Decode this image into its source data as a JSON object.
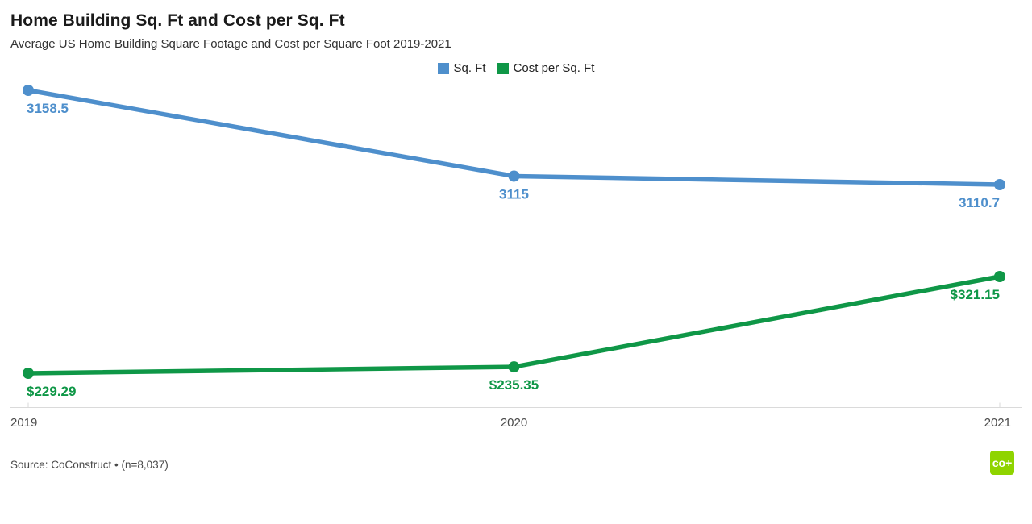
{
  "header": {
    "title": "Home Building Sq. Ft and Cost per Sq. Ft",
    "subtitle": "Average US Home Building Square Footage and Cost per Square Foot 2019-2021"
  },
  "chart_data": {
    "type": "line",
    "categories": [
      "2019",
      "2020",
      "2021"
    ],
    "series": [
      {
        "name": "Sq. Ft",
        "color": "#4e8fcc",
        "values": [
          3158.5,
          3115,
          3110.7
        ],
        "labels": [
          "3158.5",
          "3115",
          "3110.7"
        ]
      },
      {
        "name": "Cost per Sq. Ft",
        "color": "#0f9747",
        "values": [
          229.29,
          235.35,
          321.15
        ],
        "labels": [
          "$229.29",
          "$235.35",
          "$321.15"
        ]
      }
    ],
    "legend_position": "top-center",
    "grid": false,
    "dual_scale": true,
    "axis_color": "#dadada"
  },
  "footer": {
    "source": "Source: CoConstruct • (n=8,037)",
    "logo_text": "co+",
    "logo_color": "#8fd400"
  }
}
